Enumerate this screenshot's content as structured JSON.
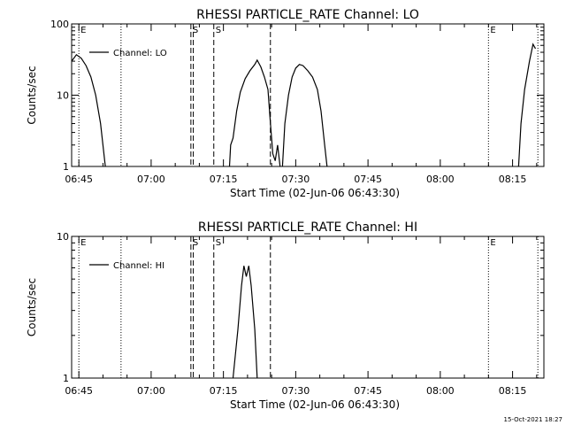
{
  "chart_data": [
    {
      "type": "line",
      "title": "RHESSI PARTICLE_RATE Channel: LO",
      "xlabel": "Start Time (02-Jun-06 06:43:30)",
      "ylabel": "Counts/sec",
      "y_scale": "log",
      "ylim": [
        1,
        100
      ],
      "xlim": [
        "06:43:30",
        "08:21:30"
      ],
      "x_ticks": [
        "06:45",
        "07:00",
        "07:15",
        "07:30",
        "07:45",
        "08:00",
        "08:15"
      ],
      "y_ticks": [
        "1",
        "10",
        "100"
      ],
      "legend": {
        "position": "top-left",
        "entries": [
          "Channel: LO"
        ]
      },
      "series": [
        {
          "name": "Channel: LO",
          "points": [
            [
              "06:43:30",
              30
            ],
            [
              "06:44:30",
              37
            ],
            [
              "06:45:30",
              33
            ],
            [
              "06:46:30",
              26
            ],
            [
              "06:47:30",
              18
            ],
            [
              "06:48:30",
              10
            ],
            [
              "06:49:30",
              4
            ],
            [
              "06:50:00",
              2
            ],
            [
              "06:50:30",
              1
            ],
            null,
            [
              "07:16:15",
              1
            ],
            [
              "07:16:30",
              2
            ],
            [
              "07:17:00",
              2.5
            ],
            [
              "07:17:45",
              6
            ],
            [
              "07:18:30",
              11
            ],
            [
              "07:19:30",
              17
            ],
            [
              "07:20:30",
              22
            ],
            [
              "07:21:30",
              27
            ],
            [
              "07:22:00",
              31
            ],
            [
              "07:22:45",
              25
            ],
            [
              "07:23:30",
              18
            ],
            [
              "07:24:15",
              12
            ],
            [
              "07:24:45",
              4
            ],
            [
              "07:25:15",
              1.5
            ],
            [
              "07:25:45",
              1.2
            ],
            [
              "07:26:15",
              2
            ],
            [
              "07:26:45",
              1
            ],
            null,
            [
              "07:27:15",
              1
            ],
            [
              "07:27:45",
              4
            ],
            [
              "07:28:30",
              10
            ],
            [
              "07:29:15",
              18
            ],
            [
              "07:30:00",
              24
            ],
            [
              "07:30:45",
              27
            ],
            [
              "07:31:30",
              26
            ],
            [
              "07:32:30",
              22
            ],
            [
              "07:33:30",
              18
            ],
            [
              "07:34:30",
              12
            ],
            [
              "07:35:15",
              6
            ],
            [
              "07:36:00",
              2
            ],
            [
              "07:36:30",
              1
            ],
            null,
            [
              "08:16:15",
              1
            ],
            [
              "08:16:45",
              4
            ],
            [
              "08:17:30",
              12
            ],
            [
              "08:18:30",
              30
            ],
            [
              "08:19:15",
              52
            ],
            [
              "08:19:45",
              45
            ]
          ]
        }
      ],
      "markers": [
        {
          "time": "06:45:00",
          "style": "dotted",
          "label": "E"
        },
        {
          "time": "06:53:45",
          "style": "dotted",
          "label": ""
        },
        {
          "time": "07:08:15",
          "style": "dashed",
          "label": "S"
        },
        {
          "time": "07:08:45",
          "style": "dashed",
          "label": ""
        },
        {
          "time": "07:13:00",
          "style": "dashed",
          "label": "S"
        },
        {
          "time": "07:24:45",
          "style": "dashed",
          "label": ""
        },
        {
          "time": "08:10:00",
          "style": "dotted",
          "label": "E"
        },
        {
          "time": "08:20:15",
          "style": "dotted",
          "label": ""
        }
      ]
    },
    {
      "type": "line",
      "title": "RHESSI PARTICLE_RATE Channel: HI",
      "xlabel": "Start Time (02-Jun-06 06:43:30)",
      "ylabel": "Counts/sec",
      "y_scale": "log",
      "ylim": [
        1,
        10
      ],
      "xlim": [
        "06:43:30",
        "08:21:30"
      ],
      "x_ticks": [
        "06:45",
        "07:00",
        "07:15",
        "07:30",
        "07:45",
        "08:00",
        "08:15"
      ],
      "y_ticks": [
        "1",
        "10"
      ],
      "legend": {
        "position": "top-left",
        "entries": [
          "Channel: HI"
        ]
      },
      "series": [
        {
          "name": "Channel: HI",
          "points": [
            [
              "07:17:00",
              1
            ],
            [
              "07:18:00",
              2.2
            ],
            [
              "07:18:45",
              4.5
            ],
            [
              "07:19:15",
              6.2
            ],
            [
              "07:19:45",
              5.2
            ],
            [
              "07:20:15",
              6.2
            ],
            [
              "07:20:45",
              4.5
            ],
            [
              "07:21:30",
              2.2
            ],
            [
              "07:22:00",
              1
            ]
          ]
        }
      ],
      "markers": [
        {
          "time": "06:45:00",
          "style": "dotted",
          "label": "E"
        },
        {
          "time": "06:53:45",
          "style": "dotted",
          "label": ""
        },
        {
          "time": "07:08:15",
          "style": "dashed",
          "label": "S"
        },
        {
          "time": "07:08:45",
          "style": "dashed",
          "label": ""
        },
        {
          "time": "07:13:00",
          "style": "dashed",
          "label": "S"
        },
        {
          "time": "07:24:45",
          "style": "dashed",
          "label": ""
        },
        {
          "time": "08:10:00",
          "style": "dotted",
          "label": "E"
        },
        {
          "time": "08:20:15",
          "style": "dotted",
          "label": ""
        }
      ]
    }
  ],
  "footer": {
    "date_stamp": "15-Oct-2021 18:27"
  }
}
